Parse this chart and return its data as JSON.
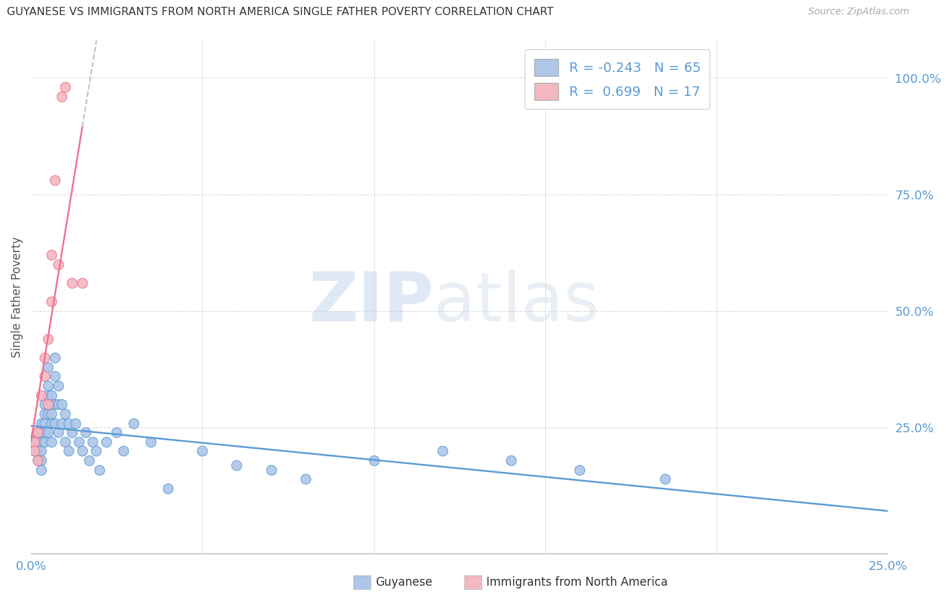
{
  "title": "GUYANESE VS IMMIGRANTS FROM NORTH AMERICA SINGLE FATHER POVERTY CORRELATION CHART",
  "source": "Source: ZipAtlas.com",
  "ylabel": "Single Father Poverty",
  "right_yticks": [
    "100.0%",
    "75.0%",
    "50.0%",
    "25.0%"
  ],
  "right_ytick_vals": [
    1.0,
    0.75,
    0.5,
    0.25
  ],
  "xlim": [
    0.0,
    0.25
  ],
  "ylim": [
    -0.02,
    1.08
  ],
  "guyanese_color": "#aec6e8",
  "immigrants_color": "#f4b8c1",
  "trendline_guyanese_color": "#5b9bd5",
  "trendline_immigrants_color": "#f07090",
  "background_color": "#ffffff",
  "grid_color": "#d8d8d8",
  "guyanese_x": [
    0.001,
    0.001,
    0.001,
    0.002,
    0.002,
    0.002,
    0.002,
    0.003,
    0.003,
    0.003,
    0.003,
    0.003,
    0.003,
    0.004,
    0.004,
    0.004,
    0.004,
    0.004,
    0.005,
    0.005,
    0.005,
    0.005,
    0.005,
    0.006,
    0.006,
    0.006,
    0.006,
    0.006,
    0.007,
    0.007,
    0.007,
    0.007,
    0.008,
    0.008,
    0.008,
    0.009,
    0.009,
    0.01,
    0.01,
    0.011,
    0.011,
    0.012,
    0.013,
    0.014,
    0.015,
    0.016,
    0.017,
    0.018,
    0.019,
    0.02,
    0.022,
    0.025,
    0.027,
    0.03,
    0.035,
    0.04,
    0.05,
    0.06,
    0.07,
    0.08,
    0.1,
    0.12,
    0.14,
    0.16,
    0.185
  ],
  "guyanese_y": [
    0.23,
    0.22,
    0.2,
    0.24,
    0.22,
    0.2,
    0.18,
    0.26,
    0.24,
    0.22,
    0.2,
    0.18,
    0.16,
    0.3,
    0.28,
    0.26,
    0.24,
    0.22,
    0.38,
    0.34,
    0.32,
    0.28,
    0.24,
    0.32,
    0.3,
    0.28,
    0.26,
    0.22,
    0.4,
    0.36,
    0.3,
    0.26,
    0.34,
    0.3,
    0.24,
    0.3,
    0.26,
    0.28,
    0.22,
    0.26,
    0.2,
    0.24,
    0.26,
    0.22,
    0.2,
    0.24,
    0.18,
    0.22,
    0.2,
    0.16,
    0.22,
    0.24,
    0.2,
    0.26,
    0.22,
    0.12,
    0.2,
    0.17,
    0.16,
    0.14,
    0.18,
    0.2,
    0.18,
    0.16,
    0.14
  ],
  "immigrants_x": [
    0.001,
    0.001,
    0.002,
    0.002,
    0.003,
    0.004,
    0.004,
    0.005,
    0.005,
    0.006,
    0.006,
    0.007,
    0.008,
    0.009,
    0.01,
    0.012,
    0.015
  ],
  "immigrants_y": [
    0.22,
    0.2,
    0.24,
    0.18,
    0.32,
    0.4,
    0.36,
    0.44,
    0.3,
    0.62,
    0.52,
    0.78,
    0.6,
    0.96,
    0.98,
    0.56,
    0.56
  ],
  "watermark_zip_color": "#c5d8ee",
  "watermark_atlas_color": "#c8d8e8"
}
